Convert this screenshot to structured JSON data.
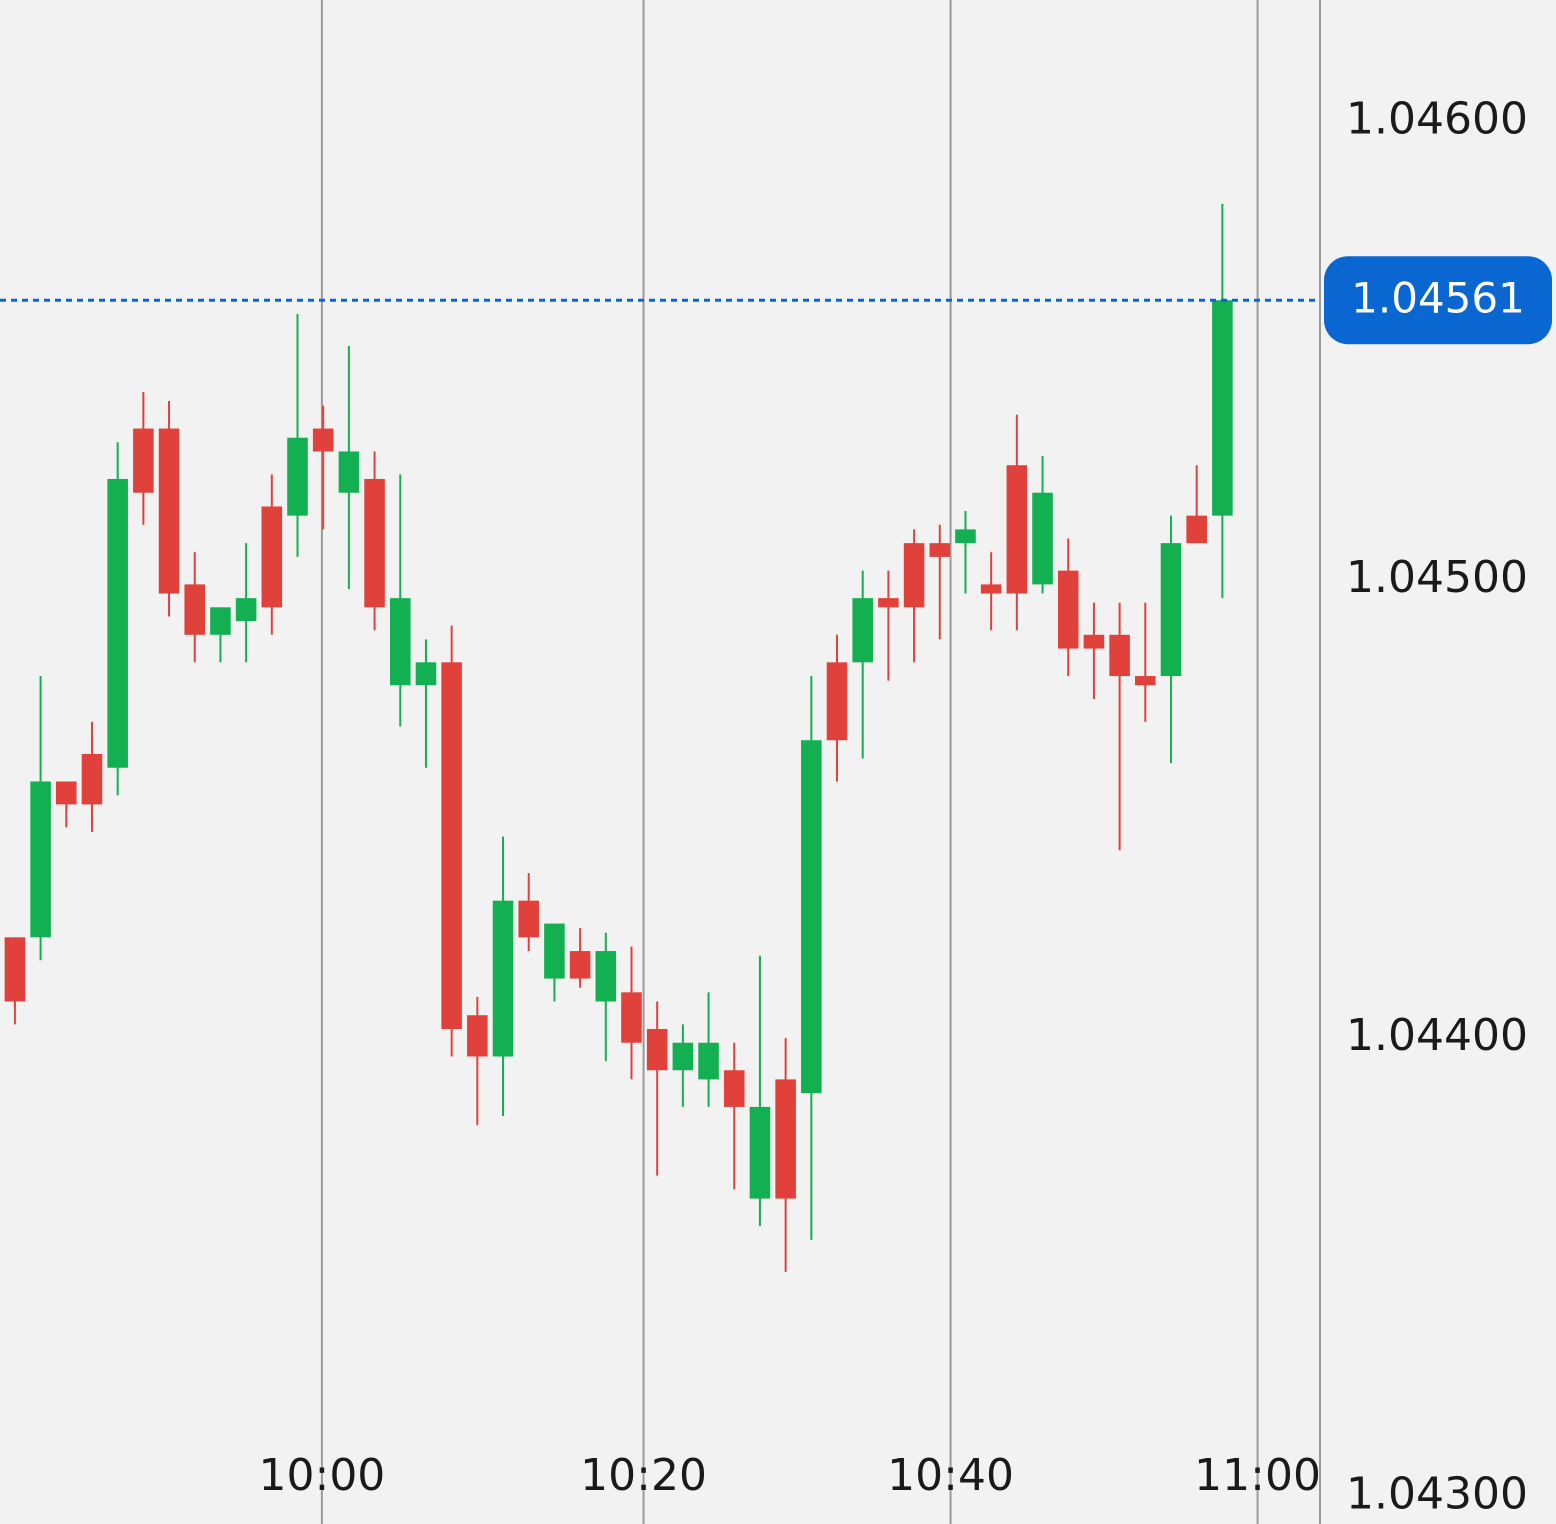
{
  "chart_data": {
    "type": "candlestick",
    "up_color": "#12b050",
    "down_color": "#e0413a",
    "grid": true,
    "ylim": [
      1.04294,
      1.046265
    ],
    "yticks": [
      {
        "value": 1.046,
        "label": "1.04600"
      },
      {
        "value": 1.045,
        "label": "1.04500"
      },
      {
        "value": 1.044,
        "label": "1.04400"
      },
      {
        "value": 1.043,
        "label": "1.04300"
      }
    ],
    "xlim": [
      -0.58,
      50.8
    ],
    "xticks": [
      {
        "value": 11.95,
        "label": "10:00"
      },
      {
        "value": 24.47,
        "label": "10:20"
      },
      {
        "value": 36.42,
        "label": "10:40"
      },
      {
        "value": 48.37,
        "label": "11:00"
      }
    ],
    "last_price": 1.04561,
    "last_price_color": "#0a66d0",
    "series": [
      {
        "open": [
          1.04422,
          1.04422,
          1.04456,
          1.04462,
          1.04459,
          1.04533,
          1.04533,
          1.04499,
          1.04488,
          1.04491,
          1.04516,
          1.04514,
          1.04533,
          1.04519,
          1.04522,
          1.04477,
          1.04477,
          1.04482,
          1.04405,
          1.04396,
          1.0443,
          1.04413,
          1.04419,
          1.04408,
          1.0441,
          1.04402,
          1.04393,
          1.04391,
          1.04393,
          1.04365,
          1.04391,
          1.04388,
          1.04482,
          1.04482,
          1.04496,
          1.04508,
          1.04508,
          1.04508,
          1.04499,
          1.04525,
          1.04499,
          1.04502,
          1.04488,
          1.04488,
          1.04479,
          1.04479,
          1.04514,
          1.04514
        ],
        "high": [
          1.04422,
          1.04479,
          1.04456,
          1.04469,
          1.0453,
          1.04541,
          1.04539,
          1.04506,
          1.04494,
          1.04508,
          1.04523,
          1.04558,
          1.04538,
          1.04551,
          1.04528,
          1.04523,
          1.04487,
          1.0449,
          1.04409,
          1.04444,
          1.04436,
          1.04425,
          1.04424,
          1.04423,
          1.0442,
          1.04408,
          1.04403,
          1.0441,
          1.04399,
          1.04418,
          1.044,
          1.04479,
          1.04488,
          1.04502,
          1.04502,
          1.04511,
          1.04512,
          1.04515,
          1.04506,
          1.04536,
          1.04527,
          1.04509,
          1.04495,
          1.04495,
          1.04495,
          1.04514,
          1.04525,
          1.04582
        ],
        "low": [
          1.04403,
          1.04417,
          1.04446,
          1.04445,
          1.04453,
          1.04512,
          1.04492,
          1.04482,
          1.04482,
          1.04482,
          1.04488,
          1.04505,
          1.04511,
          1.04498,
          1.04489,
          1.04468,
          1.04459,
          1.04396,
          1.04381,
          1.04383,
          1.04419,
          1.04408,
          1.04411,
          1.04395,
          1.04391,
          1.0437,
          1.04385,
          1.04385,
          1.04367,
          1.04359,
          1.04349,
          1.04356,
          1.04456,
          1.04461,
          1.04478,
          1.04482,
          1.04487,
          1.04497,
          1.04489,
          1.04489,
          1.04497,
          1.04479,
          1.04474,
          1.04441,
          1.04469,
          1.0446,
          1.04508,
          1.04496
        ],
        "close": [
          1.04408,
          1.04456,
          1.04451,
          1.04451,
          1.04522,
          1.04519,
          1.04497,
          1.04488,
          1.04494,
          1.04496,
          1.04494,
          1.04531,
          1.04528,
          1.04528,
          1.04494,
          1.04496,
          1.04482,
          1.04402,
          1.04396,
          1.0443,
          1.04422,
          1.04425,
          1.04413,
          1.04419,
          1.04399,
          1.04393,
          1.04399,
          1.04399,
          1.04385,
          1.04385,
          1.04365,
          1.04465,
          1.04465,
          1.04496,
          1.04494,
          1.04494,
          1.04505,
          1.04511,
          1.04497,
          1.04497,
          1.04519,
          1.04485,
          1.04485,
          1.04479,
          1.04477,
          1.04508,
          1.04508,
          1.04561
        ]
      }
    ]
  }
}
